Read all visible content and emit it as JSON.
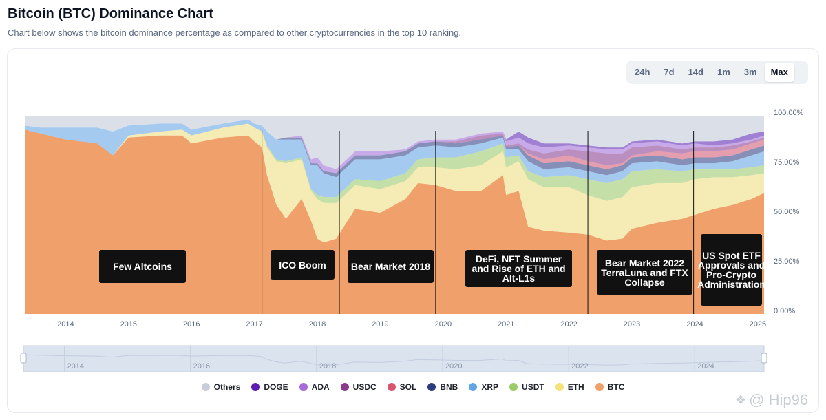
{
  "header": {
    "title": "Bitcoin (BTC) Dominance Chart",
    "subtitle": "Chart below shows the bitcoin dominance percentage as compared to other cryptocurrencies in the top 10 ranking."
  },
  "range_tabs": [
    {
      "label": "24h",
      "active": false
    },
    {
      "label": "7d",
      "active": false
    },
    {
      "label": "14d",
      "active": false
    },
    {
      "label": "1m",
      "active": false
    },
    {
      "label": "3m",
      "active": false
    },
    {
      "label": "Max",
      "active": true
    }
  ],
  "events": [
    {
      "label": "Few Altcoins"
    },
    {
      "label": "ICO Boom"
    },
    {
      "label": "Bear Market 2018"
    },
    {
      "label": "DeFi, NFT Summer and Rise of ETH and Alt-L1s"
    },
    {
      "label": "Bear Market 2022 TerraLuna and FTX Collapse"
    },
    {
      "label": "US Spot ETF Approvals and Pro-Crypto Administration"
    }
  ],
  "chart_data": {
    "type": "area",
    "stacked": true,
    "y_axis": {
      "ticks": [
        "100.00%",
        "75.00%",
        "50.00%",
        "25.00%",
        "0.00%"
      ],
      "ylim": [
        0,
        100
      ],
      "position": "right"
    },
    "x_axis": {
      "ticks": [
        "2014",
        "2015",
        "2016",
        "2017",
        "2018",
        "2019",
        "2020",
        "2021",
        "2022",
        "2023",
        "2024",
        "2025"
      ],
      "xlim": [
        2013.35,
        2025.1
      ]
    },
    "navigator": {
      "ticks": [
        "2014",
        "2016",
        "2018",
        "2020",
        "2022",
        "2024"
      ]
    },
    "event_lines": [
      2017.12,
      2018.35,
      2019.88,
      2022.3,
      2023.98
    ],
    "x": [
      2013.35,
      2013.6,
      2014.0,
      2014.5,
      2014.75,
      2015.0,
      2015.5,
      2015.85,
      2016.0,
      2016.5,
      2016.9,
      2017.0,
      2017.12,
      2017.2,
      2017.35,
      2017.5,
      2017.75,
      2017.9,
      2018.0,
      2018.1,
      2018.3,
      2018.6,
      2019.0,
      2019.4,
      2019.6,
      2019.88,
      2020.2,
      2020.6,
      2020.95,
      2021.0,
      2021.2,
      2021.35,
      2021.6,
      2022.0,
      2022.3,
      2022.6,
      2022.85,
      2023.0,
      2023.4,
      2023.8,
      2024.0,
      2024.3,
      2024.6,
      2024.9,
      2025.1
    ],
    "series": [
      {
        "name": "BTC",
        "color": "#f0a06a",
        "values": [
          93,
          91,
          88,
          86,
          80,
          89,
          90,
          90,
          86,
          89,
          90,
          87,
          84,
          70,
          55,
          48,
          58,
          47,
          38,
          36,
          38,
          53,
          51,
          58,
          66,
          65,
          62,
          62,
          70,
          60,
          62,
          44,
          42,
          41,
          40,
          37,
          38,
          43,
          46,
          48,
          50,
          53,
          55,
          58,
          61
        ]
      },
      {
        "name": "ETH",
        "color": "#f5e27a",
        "values": [
          0,
          0,
          0,
          0,
          0,
          1,
          2,
          3,
          4,
          5,
          6,
          7,
          8,
          14,
          22,
          28,
          20,
          15,
          20,
          20,
          18,
          12,
          12,
          9,
          8,
          9,
          11,
          13,
          12,
          14,
          15,
          24,
          22,
          23,
          20,
          20,
          21,
          21,
          20,
          18,
          18,
          16,
          14,
          12,
          10
        ]
      },
      {
        "name": "USDT",
        "color": "#9ccc65",
        "values": [
          0,
          0,
          0,
          0,
          0,
          0,
          0,
          0,
          0,
          0,
          0,
          0,
          0,
          1,
          1,
          1,
          1,
          1,
          2,
          3,
          3,
          3,
          4,
          4,
          4,
          5,
          6,
          7,
          4,
          5,
          3,
          4,
          5,
          6,
          8,
          9,
          9,
          8,
          7,
          6,
          5,
          4,
          4,
          4,
          4
        ]
      },
      {
        "name": "XRP",
        "color": "#64a5e6",
        "values": [
          2,
          3,
          6,
          8,
          12,
          5,
          4,
          3,
          3,
          2,
          2,
          2,
          3,
          7,
          10,
          11,
          9,
          12,
          15,
          12,
          10,
          10,
          11,
          9,
          6,
          6,
          5,
          4,
          3,
          4,
          3,
          5,
          4,
          4,
          4,
          4,
          4,
          4,
          4,
          3,
          3,
          3,
          4,
          6,
          7
        ]
      },
      {
        "name": "BNB",
        "color": "#2c3a80",
        "values": [
          0,
          0,
          0,
          0,
          0,
          0,
          0,
          0,
          0,
          0,
          0,
          0,
          0,
          0,
          0,
          1,
          1,
          1,
          1,
          1,
          2,
          2,
          2,
          2,
          2,
          2,
          2,
          2,
          1,
          1,
          2,
          3,
          3,
          3,
          3,
          3,
          3,
          3,
          3,
          3,
          3,
          3,
          3,
          3,
          3
        ]
      },
      {
        "name": "SOL",
        "color": "#d9556e",
        "values": [
          0,
          0,
          0,
          0,
          0,
          0,
          0,
          0,
          0,
          0,
          0,
          0,
          0,
          0,
          0,
          0,
          0,
          0,
          0,
          0,
          0,
          0,
          0,
          0,
          0,
          0,
          0,
          0,
          0,
          0,
          0,
          1,
          2,
          3,
          2,
          2,
          1,
          1,
          2,
          3,
          3,
          3,
          3,
          3,
          3
        ]
      },
      {
        "name": "USDC",
        "color": "#8b3a8e",
        "values": [
          0,
          0,
          0,
          0,
          0,
          0,
          0,
          0,
          0,
          0,
          0,
          0,
          0,
          0,
          0,
          0,
          0,
          0,
          0,
          0,
          0,
          0,
          0,
          0,
          0,
          0,
          1,
          2,
          1,
          1,
          1,
          2,
          3,
          3,
          5,
          6,
          5,
          4,
          3,
          2,
          2,
          2,
          2,
          1,
          1
        ]
      },
      {
        "name": "ADA",
        "color": "#a66bd9",
        "values": [
          0,
          0,
          0,
          0,
          0,
          0,
          0,
          0,
          0,
          0,
          0,
          0,
          0,
          0,
          0,
          0,
          1,
          2,
          3,
          3,
          2,
          2,
          2,
          1,
          1,
          1,
          1,
          1,
          1,
          2,
          3,
          3,
          3,
          2,
          2,
          2,
          2,
          2,
          2,
          2,
          2,
          1,
          1,
          1,
          1
        ]
      },
      {
        "name": "DOGE",
        "color": "#5a1fb0",
        "values": [
          0,
          0,
          0,
          0,
          0,
          0,
          0,
          0,
          0,
          0,
          0,
          0,
          0,
          0,
          0,
          0,
          0,
          0,
          0,
          0,
          0,
          0,
          0,
          0,
          0,
          0,
          0,
          0,
          0,
          1,
          3,
          3,
          2,
          1,
          1,
          1,
          1,
          1,
          1,
          1,
          1,
          2,
          2,
          3,
          2
        ]
      },
      {
        "name": "Others",
        "color": "#c7cdd9",
        "values": [
          5,
          6,
          6,
          6,
          8,
          5,
          4,
          4,
          7,
          4,
          2,
          4,
          5,
          8,
          12,
          11,
          10,
          22,
          21,
          25,
          27,
          18,
          18,
          17,
          13,
          12,
          12,
          9,
          8,
          12,
          8,
          11,
          14,
          14,
          15,
          16,
          16,
          13,
          12,
          14,
          13,
          13,
          12,
          9,
          8
        ]
      }
    ]
  },
  "legend": [
    {
      "label": "Others",
      "color": "#c7cdd9"
    },
    {
      "label": "DOGE",
      "color": "#5a1fb0"
    },
    {
      "label": "ADA",
      "color": "#a66bd9"
    },
    {
      "label": "USDC",
      "color": "#8b3a8e"
    },
    {
      "label": "SOL",
      "color": "#d9556e"
    },
    {
      "label": "BNB",
      "color": "#2c3a80"
    },
    {
      "label": "XRP",
      "color": "#64a5e6"
    },
    {
      "label": "USDT",
      "color": "#9ccc65"
    },
    {
      "label": "ETH",
      "color": "#f5e27a"
    },
    {
      "label": "BTC",
      "color": "#f0a06a"
    }
  ],
  "watermark": {
    "text": "@ Hip96"
  }
}
